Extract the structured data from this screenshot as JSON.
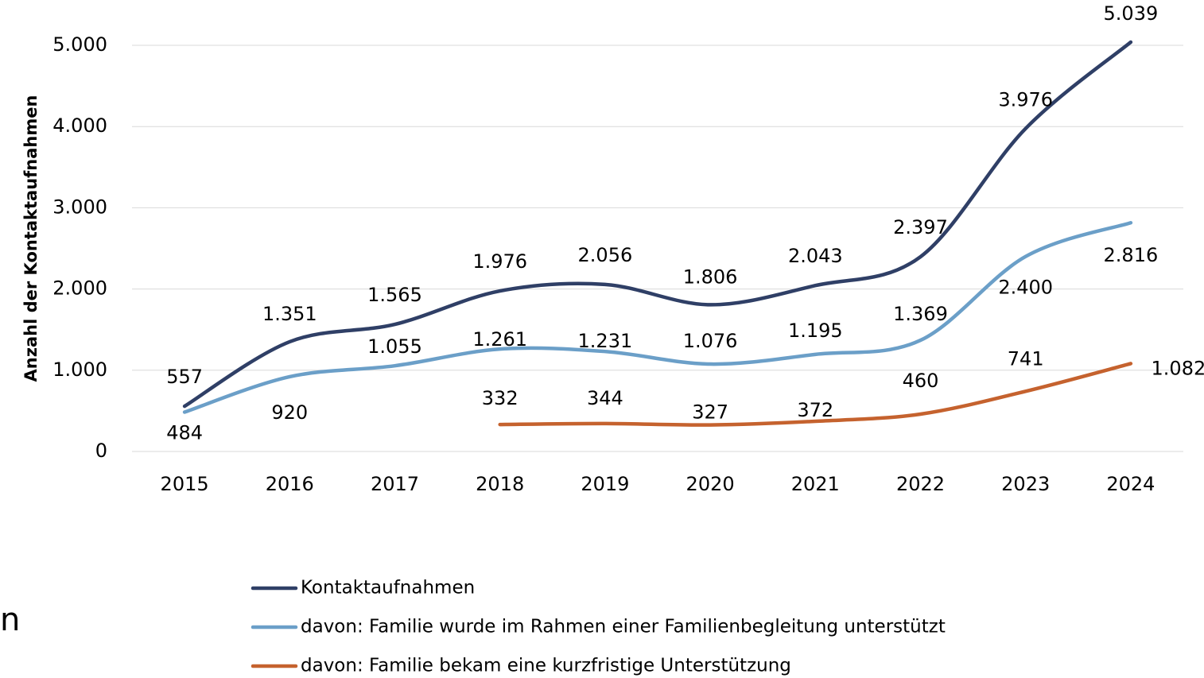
{
  "chart_data": {
    "type": "line",
    "y_axis_label": "Anzahl der Kontaktaufnahmen",
    "annotation": "n",
    "categories": [
      "2015",
      "2016",
      "2017",
      "2018",
      "2019",
      "2020",
      "2021",
      "2022",
      "2023",
      "2024"
    ],
    "series": [
      {
        "name": "Kontaktaufnahmen",
        "color": "#2f3f66",
        "values": [
          557,
          1351,
          1565,
          1976,
          2056,
          1806,
          2043,
          2397,
          3976,
          5039
        ],
        "value_labels": [
          "557",
          "1.351",
          "1.565",
          "1.976",
          "2.056",
          "1.806",
          "2.043",
          "2.397",
          "3.976",
          "5.039"
        ]
      },
      {
        "name": "davon: Familie wurde im Rahmen einer Familienbegleitung unterstützt",
        "color": "#6b9fc8",
        "values": [
          484,
          920,
          1055,
          1261,
          1231,
          1076,
          1195,
          1369,
          2400,
          2816
        ],
        "value_labels": [
          "484",
          "920",
          "1.055",
          "1.261",
          "1.231",
          "1.076",
          "1.195",
          "1.369",
          "2.400",
          "2.816"
        ]
      },
      {
        "name": "davon: Familie bekam eine kurzfristige Unterstützung",
        "color": "#c5622e",
        "values": [
          null,
          null,
          null,
          332,
          344,
          327,
          372,
          460,
          741,
          1082
        ],
        "value_labels": [
          null,
          null,
          null,
          "332",
          "344",
          "327",
          "372",
          "460",
          "741",
          "1.082"
        ]
      }
    ],
    "ylim": [
      0,
      5000
    ],
    "yticks": [
      0,
      {
        "value": 1000,
        "label": "1.000"
      },
      {
        "value": 2000,
        "label": "2.000"
      },
      {
        "value": 3000,
        "label": "3.000"
      },
      {
        "value": 4000,
        "label": "4.000"
      },
      {
        "value": 5000,
        "label": "5.000"
      }
    ],
    "grid": true,
    "legend": "bottom"
  }
}
